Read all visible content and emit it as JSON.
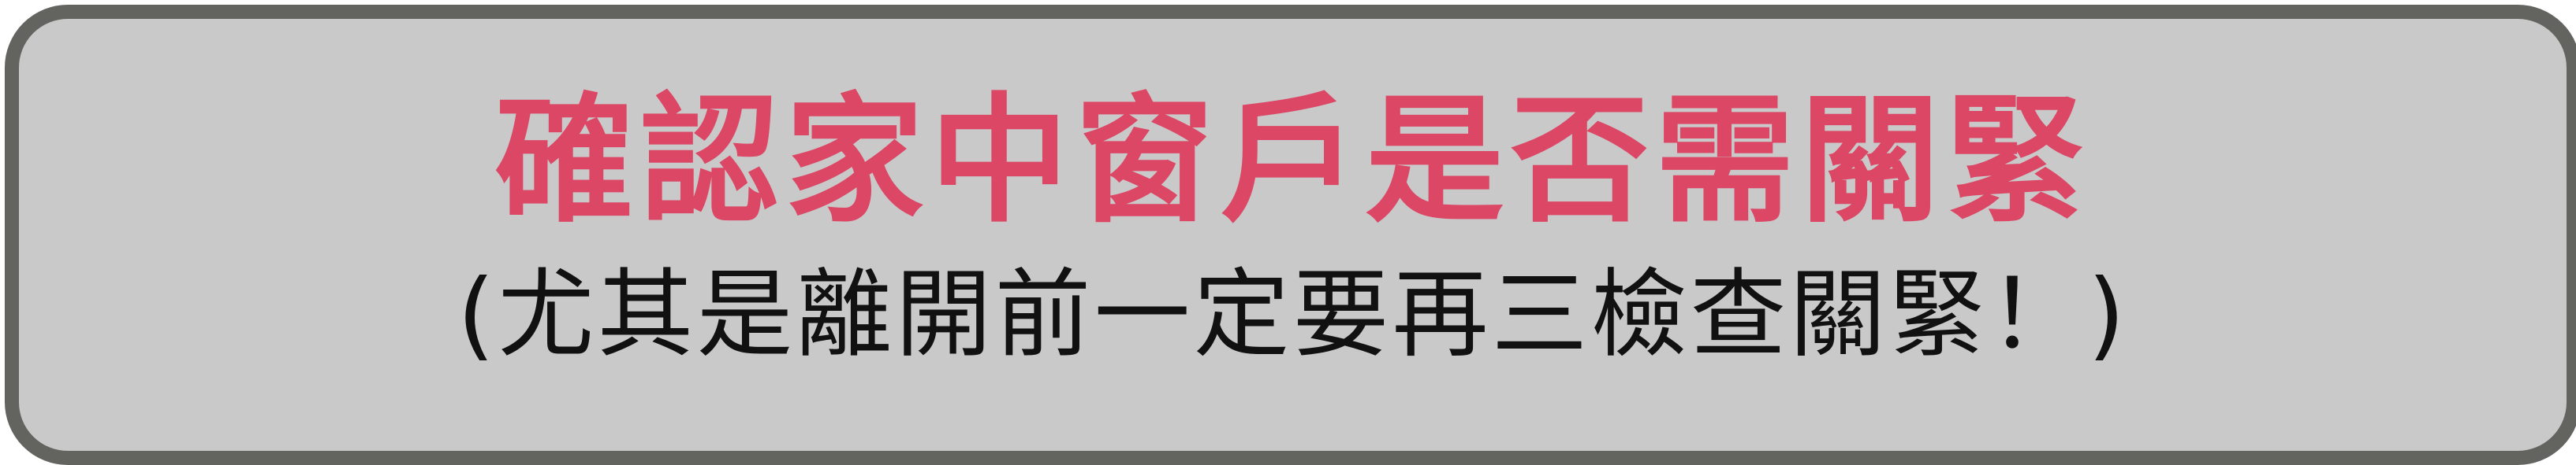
{
  "banner": {
    "headline": "確認家中窗戶是否需關緊",
    "subline": "(尤其是離開前一定要再三檢查關緊！)"
  },
  "colors": {
    "background": "#ffffff",
    "panel": "#c9c9c9",
    "border": "#636360",
    "headline_text": "#db4765",
    "subline_text": "#111111"
  }
}
